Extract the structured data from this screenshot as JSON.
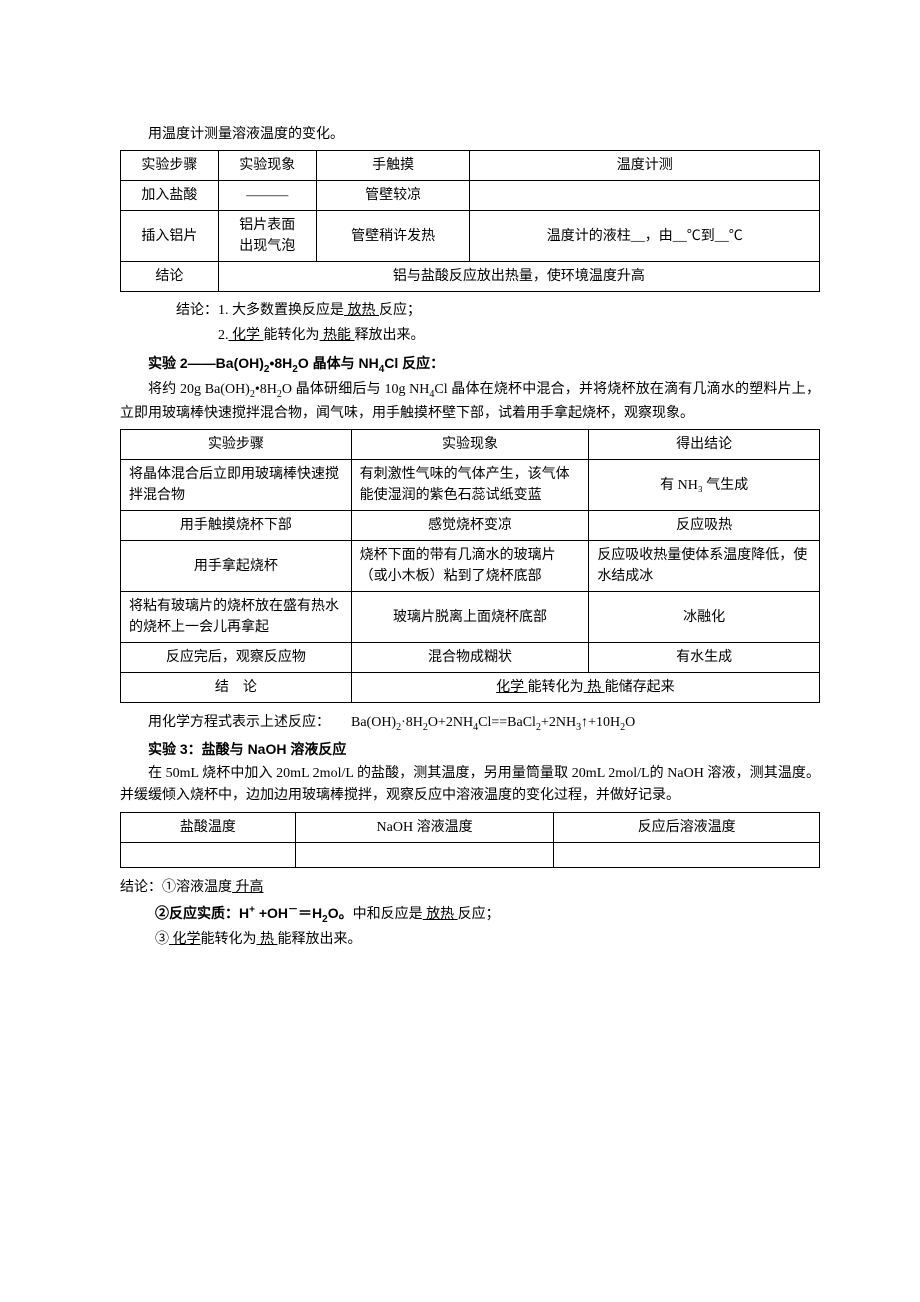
{
  "intro": "用温度计测量溶液温度的变化。",
  "t1": {
    "h": [
      "实验步骤",
      "实验现象",
      "手触摸",
      "温度计测"
    ],
    "r1": [
      "加入盐酸",
      "———",
      "管壁较凉",
      ""
    ],
    "r2": [
      "插入铝片",
      "铝片表面",
      "管壁稍许发热",
      "温度计的液柱__，由__℃到__℃"
    ],
    "r2b": "出现气泡",
    "r3_label": "结论",
    "r3_text": "铝与盐酸反应放出热量，使环境温度升高"
  },
  "conc1": {
    "l1a": "结论：1. 大多数置换反应是",
    "l1b": " 放热 ",
    "l1c": "反应；",
    "l2a": "2.",
    "l2b": " 化学 ",
    "l2c": "能转化为",
    "l2d": " 热能 ",
    "l2e": "释放出来。"
  },
  "exp2": {
    "title_a": "实验 2——Ba(OH)",
    "title_b": "•8H",
    "title_c": "O  晶体与 NH",
    "title_d": "Cl 反应：",
    "p_a": "将约 20g Ba(OH)",
    "p_b": "•8H",
    "p_c": "O 晶体研细后与 10g NH",
    "p_d": "Cl 晶体在烧杯中混合，并将烧杯放在滴有几滴水的塑料片上，立即用玻璃棒快速搅拌混合物，闻气味，用手触摸杯壁下部，试着用手拿起烧杯，观察现象。"
  },
  "t2": {
    "h": [
      "实验步骤",
      "实验现象",
      "得出结论"
    ],
    "r1": [
      "将晶体混合后立即用玻璃棒快速搅拌混合物",
      "有刺激性气味的气体产生，该气体能使湿润的紫色石蕊试纸变蓝",
      "有 NH₃ 气生成"
    ],
    "r2": [
      "用手触摸烧杯下部",
      "感觉烧杯变凉",
      "反应吸热"
    ],
    "r3": [
      "用手拿起烧杯",
      "烧杯下面的带有几滴水的玻璃片（或小木板）粘到了烧杯底部",
      "反应吸收热量使体系温度降低，使水结成冰"
    ],
    "r4": [
      "将粘有玻璃片的烧杯放在盛有热水的烧杯上一会儿再拿起",
      "玻璃片脱离上面烧杯底部",
      "冰融化"
    ],
    "r5": [
      "反应完后，观察反应物",
      "混合物成糊状",
      "有水生成"
    ],
    "r6_label": "结　论",
    "r6_a": " 化学 ",
    "r6_b": "能转化为",
    "r6_c": "  热  ",
    "r6_d": "能储存起来"
  },
  "eq": {
    "pre": "用化学方程式表示上述反应：　　Ba(OH)",
    "mid1": "·8H",
    "mid2": "O+2NH",
    "mid3": "Cl==BaCl",
    "mid4": "+2NH",
    "mid5": "↑+10H",
    "end": "O"
  },
  "exp3": {
    "title": "实验 3：盐酸与 NaOH 溶液反应",
    "p": "在 50mL 烧杯中加入 20mL 2mol/L 的盐酸，测其温度，另用量筒量取 20mL 2mol/L的 NaOH 溶液，测其温度。并缓缓倾入烧杯中，边加边用玻璃棒搅拌，观察反应中溶液温度的变化过程，并做好记录。"
  },
  "t3": {
    "h": [
      "盐酸温度",
      "NaOH 溶液温度",
      "反应后溶液温度"
    ]
  },
  "conc3": {
    "l1a": "结论：①溶液温度",
    "l1b": " 升高 ",
    "l2a": "②反应实质：H",
    "l2b": " +OH",
    "l2c": "＝H",
    "l2d": "O。",
    "l2e": "中和反应是",
    "l2f": " 放热 ",
    "l2g": "反应；",
    "l3a": "③",
    "l3b": "  化学",
    "l3c": "能转化为",
    "l3d": " 热 ",
    "l3e": "能释放出来。"
  }
}
